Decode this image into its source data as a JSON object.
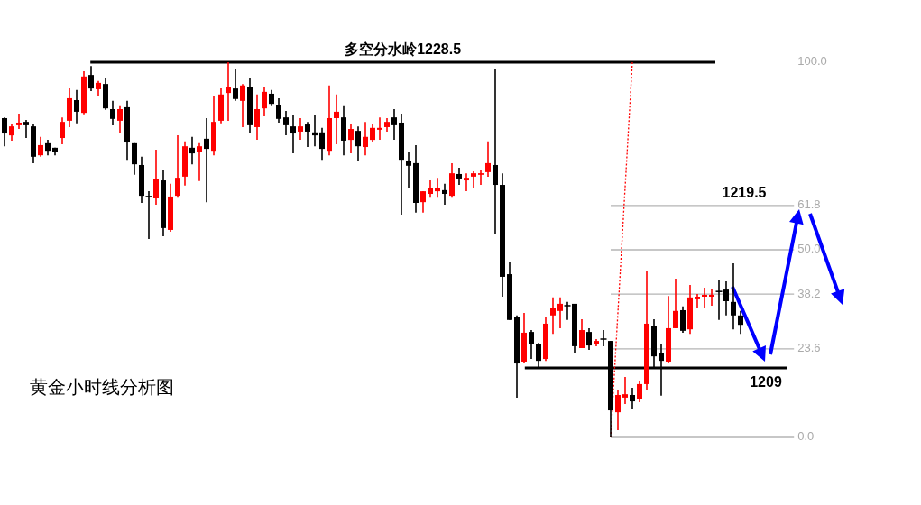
{
  "chart_data": {
    "type": "candlestick",
    "title": "黄金小时线分析图",
    "categories": [
      null,
      null,
      null,
      null,
      null,
      null,
      null,
      null,
      null,
      null,
      null,
      null,
      null,
      null,
      null,
      null,
      null,
      null,
      null,
      null,
      null,
      null,
      null,
      null,
      null,
      null,
      null,
      null,
      null,
      null,
      null,
      null,
      null,
      null,
      null,
      null,
      null,
      null,
      null,
      null,
      null,
      null,
      null,
      null,
      null,
      null,
      null,
      null,
      null,
      null,
      null,
      null,
      null,
      null,
      null,
      null,
      null,
      null,
      null,
      null,
      null,
      null,
      null,
      null,
      null,
      null,
      null,
      null,
      null,
      null,
      null,
      null,
      null,
      null,
      null,
      null,
      null,
      null,
      null,
      null,
      null,
      null,
      null,
      null,
      null,
      null,
      null,
      null,
      null,
      null,
      null,
      null,
      null,
      null,
      null,
      null,
      null,
      null,
      null,
      null,
      null,
      null,
      null
    ],
    "ohlc": [
      [
        85.1,
        85.3,
        77.6,
        81.0
      ],
      [
        80.5,
        83.4,
        79.1,
        82.9
      ],
      [
        83.2,
        86.3,
        82.2,
        83.9
      ],
      [
        84.1,
        84.6,
        79.8,
        83.2
      ],
      [
        82.9,
        83.4,
        73.1,
        74.8
      ],
      [
        75.2,
        80.1,
        74.8,
        77.9
      ],
      [
        78.4,
        79.3,
        75.2,
        76.4
      ],
      [
        77.2,
        77.2,
        75.2,
        76.2
      ],
      [
        79.8,
        85.3,
        78.1,
        84.1
      ],
      [
        84.4,
        93.0,
        82.7,
        90.4
      ],
      [
        89.9,
        92.6,
        83.7,
        86.8
      ],
      [
        86.5,
        97.6,
        86.1,
        96.2
      ],
      [
        96.6,
        99.0,
        92.3,
        93.0
      ],
      [
        92.8,
        95.0,
        91.1,
        94.5
      ],
      [
        94.2,
        95.9,
        87.3,
        87.7
      ],
      [
        87.5,
        89.7,
        83.2,
        84.9
      ],
      [
        84.4,
        88.5,
        81.0,
        87.5
      ],
      [
        88.0,
        89.7,
        74.0,
        78.6
      ],
      [
        78.4,
        78.4,
        70.0,
        72.8
      ],
      [
        72.6,
        74.8,
        62.5,
        64.4
      ],
      [
        64.2,
        65.6,
        52.9,
        64.2
      ],
      [
        63.7,
        76.7,
        62.0,
        68.8
      ],
      [
        68.5,
        71.4,
        53.6,
        55.8
      ],
      [
        55.3,
        67.6,
        54.8,
        64.2
      ],
      [
        64.4,
        80.5,
        63.9,
        69.2
      ],
      [
        69.5,
        78.9,
        67.1,
        77.6
      ],
      [
        77.2,
        80.1,
        72.8,
        75.7
      ],
      [
        76.2,
        78.4,
        68.3,
        77.6
      ],
      [
        79.6,
        85.1,
        62.7,
        76.9
      ],
      [
        76.4,
        90.9,
        75.2,
        84.1
      ],
      [
        84.4,
        93.0,
        83.7,
        91.4
      ],
      [
        91.8,
        100.0,
        84.4,
        93.3
      ],
      [
        93.0,
        98.3,
        89.7,
        90.2
      ],
      [
        89.7,
        94.2,
        82.7,
        93.8
      ],
      [
        93.3,
        95.9,
        81.0,
        83.2
      ],
      [
        82.7,
        91.4,
        79.3,
        87.5
      ],
      [
        87.7,
        93.3,
        85.6,
        92.1
      ],
      [
        91.6,
        92.6,
        88.5,
        88.9
      ],
      [
        88.7,
        90.4,
        83.9,
        84.9
      ],
      [
        85.3,
        87.0,
        80.5,
        83.2
      ],
      [
        82.9,
        85.8,
        75.7,
        81.0
      ],
      [
        81.5,
        85.1,
        79.3,
        82.9
      ],
      [
        83.4,
        84.1,
        77.4,
        81.5
      ],
      [
        81.3,
        85.8,
        77.6,
        80.5
      ],
      [
        81.3,
        82.5,
        74.0,
        76.9
      ],
      [
        76.4,
        93.8,
        75.2,
        85.1
      ],
      [
        85.1,
        91.4,
        78.1,
        86.8
      ],
      [
        85.3,
        88.5,
        75.2,
        79.1
      ],
      [
        79.3,
        83.4,
        75.7,
        82.2
      ],
      [
        81.7,
        82.9,
        73.6,
        77.6
      ],
      [
        77.4,
        84.1,
        75.2,
        80.1
      ],
      [
        79.3,
        83.4,
        78.6,
        82.5
      ],
      [
        82.0,
        85.3,
        79.3,
        82.5
      ],
      [
        82.7,
        85.1,
        81.5,
        84.1
      ],
      [
        85.3,
        87.5,
        79.3,
        83.2
      ],
      [
        83.9,
        86.3,
        59.4,
        74.0
      ],
      [
        73.8,
        76.0,
        66.6,
        72.4
      ],
      [
        73.1,
        77.9,
        59.9,
        62.5
      ],
      [
        62.7,
        65.6,
        59.9,
        65.6
      ],
      [
        64.9,
        68.5,
        63.9,
        66.4
      ],
      [
        65.6,
        69.2,
        63.9,
        66.4
      ],
      [
        65.9,
        67.6,
        62.0,
        64.9
      ],
      [
        64.4,
        73.1,
        63.9,
        70.4
      ],
      [
        70.2,
        71.9,
        67.3,
        69.0
      ],
      [
        68.5,
        70.4,
        65.6,
        69.2
      ],
      [
        69.5,
        70.9,
        66.6,
        70.4
      ],
      [
        70.0,
        71.4,
        67.3,
        70.4
      ],
      [
        70.7,
        78.9,
        69.5,
        73.1
      ],
      [
        72.6,
        98.3,
        54.1,
        67.3
      ],
      [
        67.3,
        70.4,
        37.5,
        42.8
      ],
      [
        43.5,
        46.9,
        31.3,
        31.3
      ],
      [
        32.0,
        32.5,
        10.6,
        19.7
      ],
      [
        20.2,
        33.2,
        19.7,
        27.9
      ],
      [
        28.1,
        28.6,
        20.9,
        25.0
      ],
      [
        24.8,
        25.2,
        18.5,
        20.4
      ],
      [
        20.9,
        32.0,
        20.4,
        30.3
      ],
      [
        32.5,
        37.3,
        27.6,
        34.4
      ],
      [
        33.7,
        37.3,
        29.1,
        35.6
      ],
      [
        35.1,
        36.1,
        31.3,
        35.1
      ],
      [
        35.6,
        35.6,
        22.6,
        24.3
      ],
      [
        23.8,
        31.5,
        23.8,
        28.6
      ],
      [
        28.1,
        29.1,
        23.3,
        24.5
      ],
      [
        25.0,
        26.2,
        24.3,
        25.7
      ],
      [
        26.2,
        28.6,
        24.3,
        26.2
      ],
      [
        25.7,
        25.7,
        0.0,
        7.2
      ],
      [
        6.7,
        12.7,
        1.9,
        11.3
      ],
      [
        10.6,
        16.1,
        8.9,
        11.5
      ],
      [
        11.3,
        13.2,
        7.7,
        9.6
      ],
      [
        10.1,
        14.9,
        9.4,
        14.2
      ],
      [
        14.2,
        44.5,
        12.5,
        30.3
      ],
      [
        29.8,
        31.5,
        18.5,
        21.6
      ],
      [
        22.4,
        24.8,
        11.1,
        20.4
      ],
      [
        20.2,
        37.7,
        19.7,
        29.1
      ],
      [
        29.1,
        42.3,
        29.1,
        33.7
      ],
      [
        33.9,
        34.9,
        27.9,
        28.4
      ],
      [
        28.8,
        40.6,
        27.6,
        37.3
      ],
      [
        36.8,
        38.2,
        34.6,
        37.5
      ],
      [
        37.5,
        39.9,
        34.6,
        38.0
      ],
      [
        37.5,
        39.4,
        35.1,
        38.0
      ],
      [
        38.9,
        41.8,
        31.3,
        38.9
      ],
      [
        39.4,
        41.6,
        32.5,
        36.3
      ],
      [
        36.1,
        46.4,
        28.8,
        32.5
      ],
      [
        32.5,
        33.7,
        27.6,
        30.0
      ]
    ],
    "colors": [
      "#000000",
      "#ff0000",
      "#ff0000",
      "#000000",
      "#000000",
      "#ff0000",
      "#000000",
      "#000000",
      "#ff0000",
      "#ff0000",
      "#000000",
      "#ff0000",
      "#000000",
      "#ff0000",
      "#000000",
      "#000000",
      "#ff0000",
      "#000000",
      "#000000",
      "#000000",
      "#000000",
      "#ff0000",
      "#000000",
      "#ff0000",
      "#ff0000",
      "#ff0000",
      "#000000",
      "#ff0000",
      "#000000",
      "#ff0000",
      "#ff0000",
      "#ff0000",
      "#000000",
      "#ff0000",
      "#000000",
      "#ff0000",
      "#ff0000",
      "#000000",
      "#000000",
      "#000000",
      "#000000",
      "#ff0000",
      "#000000",
      "#000000",
      "#000000",
      "#ff0000",
      "#ff0000",
      "#000000",
      "#ff0000",
      "#000000",
      "#ff0000",
      "#ff0000",
      "#ff0000",
      "#ff0000",
      "#000000",
      "#000000",
      "#000000",
      "#000000",
      "#ff0000",
      "#ff0000",
      "#ff0000",
      "#000000",
      "#ff0000",
      "#000000",
      "#ff0000",
      "#ff0000",
      "#ff0000",
      "#ff0000",
      "#000000",
      "#000000",
      "#000000",
      "#000000",
      "#ff0000",
      "#000000",
      "#000000",
      "#ff0000",
      "#ff0000",
      "#ff0000",
      "#000000",
      "#000000",
      "#ff0000",
      "#000000",
      "#ff0000",
      "#000000",
      "#000000",
      "#ff0000",
      "#ff0000",
      "#000000",
      "#ff0000",
      "#ff0000",
      "#000000",
      "#000000",
      "#ff0000",
      "#ff0000",
      "#000000",
      "#ff0000",
      "#ff0000",
      "#ff0000",
      "#ff0000",
      "#000000",
      "#000000",
      "#000000",
      "#000000"
    ],
    "series": [
      {
        "type": "line",
        "values": [
          null,
          null,
          null,
          null,
          null,
          null,
          null,
          null,
          null,
          null,
          null,
          null,
          null,
          null,
          null,
          null,
          null,
          null,
          null,
          null,
          null,
          null,
          null,
          null,
          null,
          null,
          null,
          null,
          null,
          null,
          null,
          null,
          null,
          null,
          null,
          null,
          null,
          null,
          null,
          null,
          null,
          null,
          null,
          null,
          null,
          null,
          null,
          null,
          null,
          null,
          null,
          null,
          null,
          null,
          null,
          null,
          null,
          null,
          null,
          null,
          null,
          null,
          null,
          null,
          null,
          null,
          null,
          null,
          null,
          null,
          null,
          null,
          null,
          null,
          null,
          null,
          null,
          null,
          null,
          null,
          null,
          null,
          null,
          null,
          0,
          33.3,
          66.7,
          100,
          null,
          null,
          null,
          null,
          null,
          null,
          null,
          null,
          null,
          null,
          null,
          null,
          null,
          null,
          null
        ],
        "color": "#ff0000",
        "line_style": "dotted"
      }
    ],
    "ylim": [
      0,
      100
    ],
    "yticks": [
      {
        "value": 0,
        "label": "0.0"
      },
      {
        "value": 23.6,
        "label": "23.6"
      },
      {
        "value": 38.2,
        "label": "38.2"
      },
      {
        "value": 50,
        "label": "50.0"
      },
      {
        "value": 61.8,
        "label": "61.8"
      },
      {
        "value": 100,
        "label": "100.0"
      }
    ],
    "tick_labels": "y",
    "ref_lines": [
      {
        "axis": "y",
        "value": 100,
        "label": "多空分水岭1228.5",
        "color": "#000000"
      },
      {
        "axis": "y",
        "value": 18.5,
        "color": "#000000"
      },
      {
        "axis": "y",
        "value": 0,
        "color": "#b4b4b4"
      },
      {
        "axis": "y",
        "value": 23.6,
        "color": "#b4b4b4"
      },
      {
        "axis": "y",
        "value": 38.2,
        "color": "#b4b4b4"
      },
      {
        "axis": "y",
        "value": 50,
        "color": "#b4b4b4"
      },
      {
        "axis": "y",
        "value": 61.8,
        "color": "#b4b4b4"
      }
    ],
    "annotations": [
      "1219.5",
      "1209"
    ]
  }
}
